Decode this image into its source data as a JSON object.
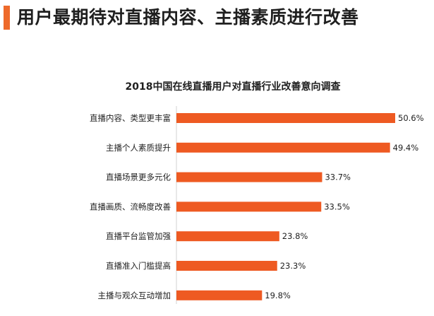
{
  "page": {
    "title": "用户最期待对直播内容、主播素质进行改善"
  },
  "colors": {
    "accent": "#ee6a2b",
    "bar": "#ee5a22",
    "text": "#1f1f1f",
    "axis": "#d0d0d0"
  },
  "chart_data": {
    "type": "bar",
    "orientation": "horizontal",
    "title": "2018中国在线直播用户对直播行业改善意向调查",
    "categories": [
      "直播内容、类型更丰富",
      "主播个人素质提升",
      "直播场景更多元化",
      "直播画质、流畅度改善",
      "直播平台监管加强",
      "直播准入门槛提高",
      "主播与观众互动增加"
    ],
    "values": [
      50.6,
      49.4,
      33.7,
      33.5,
      23.8,
      23.3,
      19.8
    ],
    "value_labels": [
      "50.6%",
      "49.4%",
      "33.7%",
      "33.5%",
      "23.8%",
      "23.3%",
      "19.8%"
    ],
    "unit": "%",
    "xlim": [
      0,
      50.6
    ],
    "grid": false,
    "legend": "none"
  }
}
